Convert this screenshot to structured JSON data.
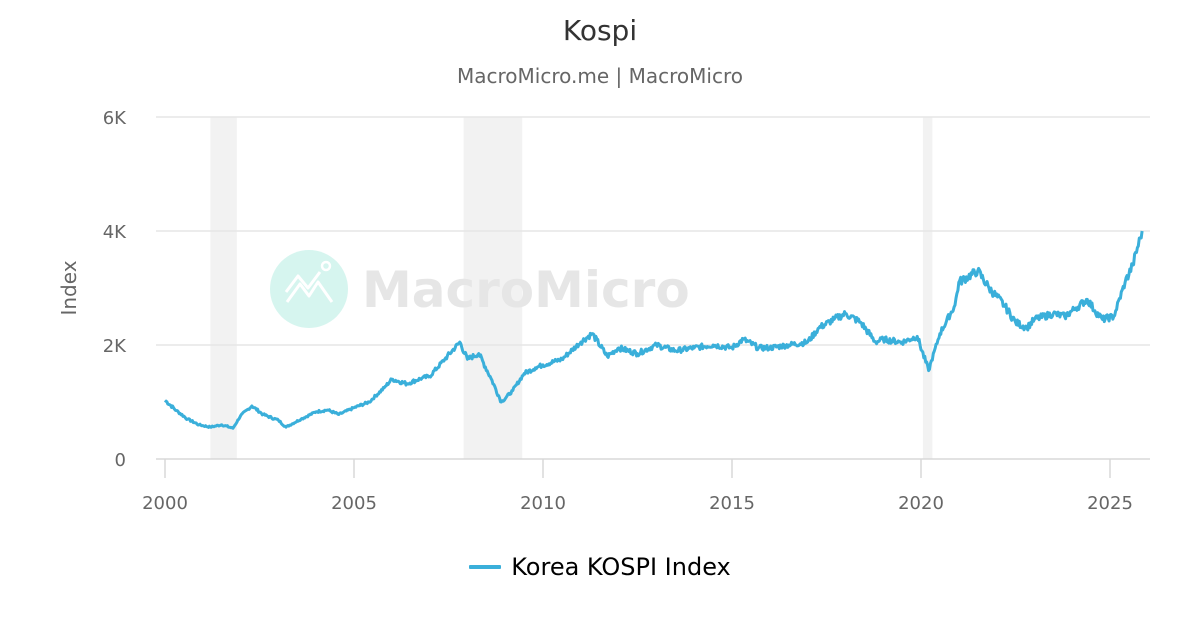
{
  "header": {
    "title": "Kospi",
    "subtitle": "MacroMicro.me | MacroMicro"
  },
  "watermark": {
    "text": "MacroMicro",
    "icon": "chart-logo-icon",
    "icon_color": "#d6f5ef"
  },
  "legend": {
    "items": [
      {
        "label": "Korea KOSPI Index",
        "color": "#3aafda"
      }
    ]
  },
  "axes": {
    "y_label": "Index",
    "y_ticks": [
      "0",
      "2K",
      "4K",
      "6K"
    ],
    "x_ticks": [
      "2000",
      "2005",
      "2010",
      "2015",
      "2020",
      "2025"
    ]
  },
  "colors": {
    "series": "#3aafda",
    "gridline": "#e6e6e6",
    "recession_band": "#f2f2f2",
    "axis_text": "#666666"
  },
  "chart_data": {
    "type": "line",
    "title": "Kospi",
    "subtitle": "MacroMicro.me | MacroMicro",
    "xlabel": "",
    "ylabel": "Index",
    "xlim": [
      2000,
      2026
    ],
    "ylim": [
      0,
      6000
    ],
    "y_ticks": [
      0,
      2000,
      4000,
      6000
    ],
    "y_tick_labels": [
      "0",
      "2K",
      "4K",
      "6K"
    ],
    "x_ticks": [
      2000,
      2005,
      2010,
      2015,
      2020,
      2025
    ],
    "grid": "horizontal",
    "legend_position": "bottom",
    "shaded_regions": [
      {
        "label": "recession",
        "x_start": 2001.2,
        "x_end": 2001.9
      },
      {
        "label": "recession",
        "x_start": 2007.9,
        "x_end": 2009.45
      },
      {
        "label": "recession",
        "x_start": 2020.05,
        "x_end": 2020.3
      }
    ],
    "series": [
      {
        "name": "Korea KOSPI Index",
        "color": "#3aafda",
        "x": [
          2000.0,
          2000.3,
          2000.6,
          2000.9,
          2001.2,
          2001.5,
          2001.8,
          2002.0,
          2002.3,
          2002.6,
          2003.0,
          2003.2,
          2003.6,
          2004.0,
          2004.3,
          2004.6,
          2005.0,
          2005.4,
          2005.8,
          2006.0,
          2006.4,
          2006.8,
          2007.0,
          2007.4,
          2007.8,
          2008.0,
          2008.3,
          2008.6,
          2008.9,
          2009.2,
          2009.5,
          2009.8,
          2010.0,
          2010.5,
          2011.0,
          2011.3,
          2011.7,
          2012.0,
          2012.5,
          2013.0,
          2013.5,
          2014.0,
          2014.5,
          2015.0,
          2015.3,
          2015.7,
          2016.0,
          2016.5,
          2017.0,
          2017.3,
          2017.7,
          2018.0,
          2018.4,
          2018.8,
          2019.0,
          2019.5,
          2019.9,
          2020.2,
          2020.5,
          2020.9,
          2021.0,
          2021.5,
          2021.8,
          2022.2,
          2022.5,
          2022.8,
          2023.0,
          2023.5,
          2023.8,
          2024.1,
          2024.4,
          2024.6,
          2024.8,
          2025.1,
          2025.4,
          2025.6,
          2025.85
        ],
        "values": [
          1030,
          850,
          700,
          600,
          560,
          600,
          540,
          760,
          930,
          780,
          680,
          560,
          700,
          830,
          860,
          780,
          900,
          1000,
          1250,
          1400,
          1320,
          1420,
          1450,
          1750,
          2050,
          1750,
          1850,
          1450,
          1000,
          1200,
          1500,
          1600,
          1650,
          1750,
          2050,
          2200,
          1800,
          1950,
          1850,
          2000,
          1900,
          1950,
          2000,
          1950,
          2100,
          1950,
          1950,
          2000,
          2050,
          2300,
          2450,
          2550,
          2400,
          2050,
          2100,
          2050,
          2150,
          1550,
          2200,
          2700,
          3100,
          3300,
          3000,
          2700,
          2400,
          2300,
          2450,
          2550,
          2500,
          2650,
          2800,
          2600,
          2450,
          2500,
          3100,
          3400,
          4000
        ]
      }
    ]
  }
}
